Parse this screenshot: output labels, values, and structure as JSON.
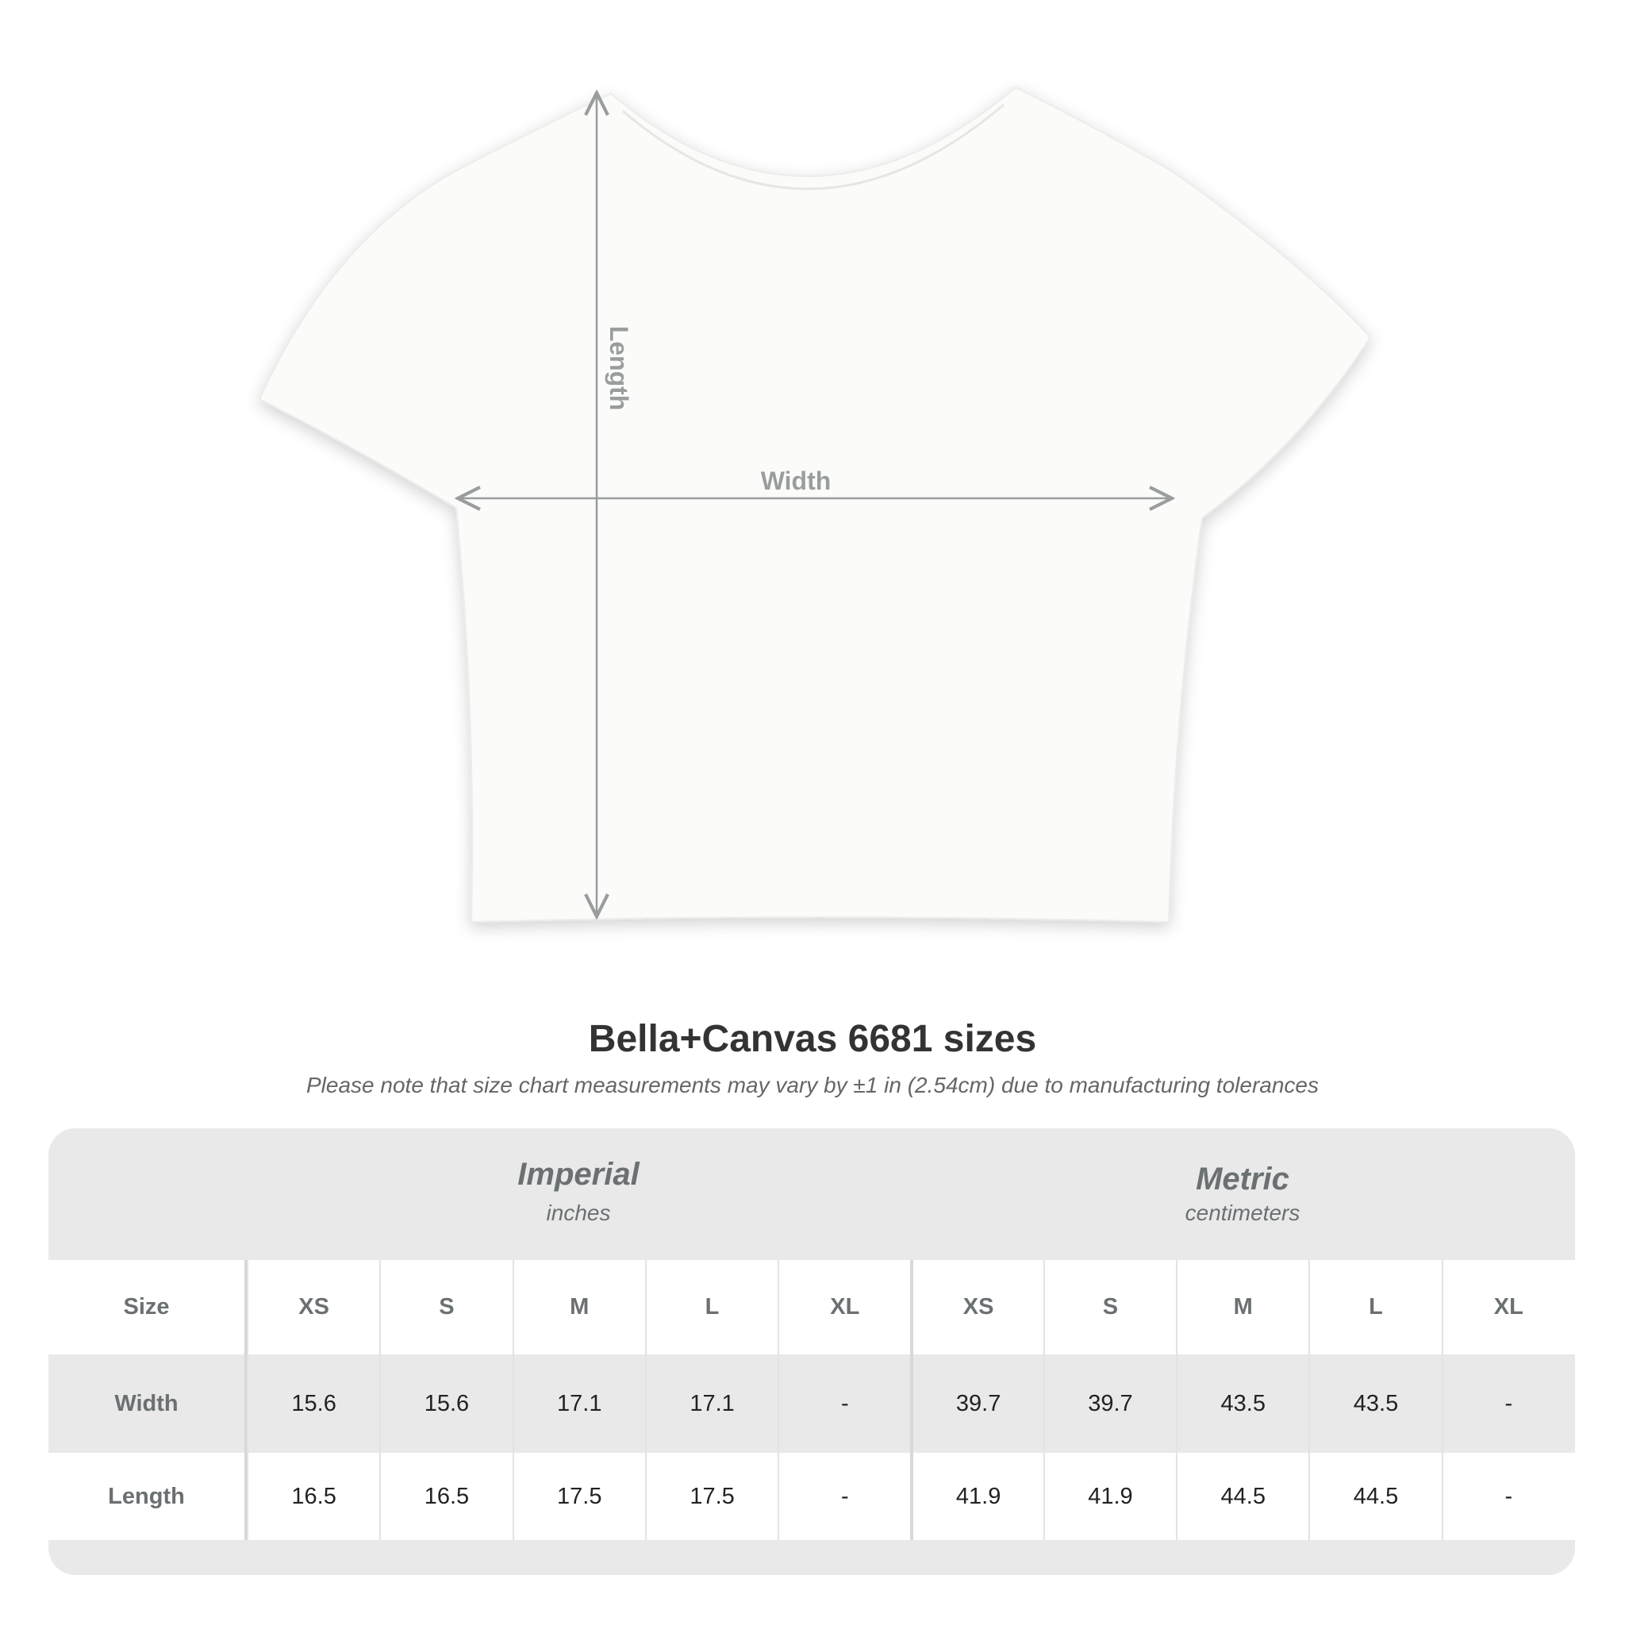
{
  "diagram": {
    "length_label": "Length",
    "width_label": "Width"
  },
  "title": "Bella+Canvas 6681 sizes",
  "note": "Please note that size chart measurements may vary by ±1 in (2.54cm) due to manufacturing tolerances",
  "table": {
    "imperial": {
      "label": "Imperial",
      "unit": "inches"
    },
    "metric": {
      "label": "Metric",
      "unit": "centimeters"
    },
    "rows": [
      {
        "label": "Size",
        "values": [
          "XS",
          "S",
          "M",
          "L",
          "XL",
          "XS",
          "S",
          "M",
          "L",
          "XL"
        ]
      },
      {
        "label": "Width",
        "values": [
          "15.6",
          "15.6",
          "17.1",
          "17.1",
          "-",
          "39.7",
          "39.7",
          "43.5",
          "43.5",
          "-"
        ]
      },
      {
        "label": "Length",
        "values": [
          "16.5",
          "16.5",
          "17.5",
          "17.5",
          "-",
          "41.9",
          "41.9",
          "44.5",
          "44.5",
          "-"
        ]
      }
    ]
  },
  "colors": {
    "header_bg": "#e9e9e9",
    "label": "#6b7072",
    "arrow": "#9a9d9e"
  }
}
